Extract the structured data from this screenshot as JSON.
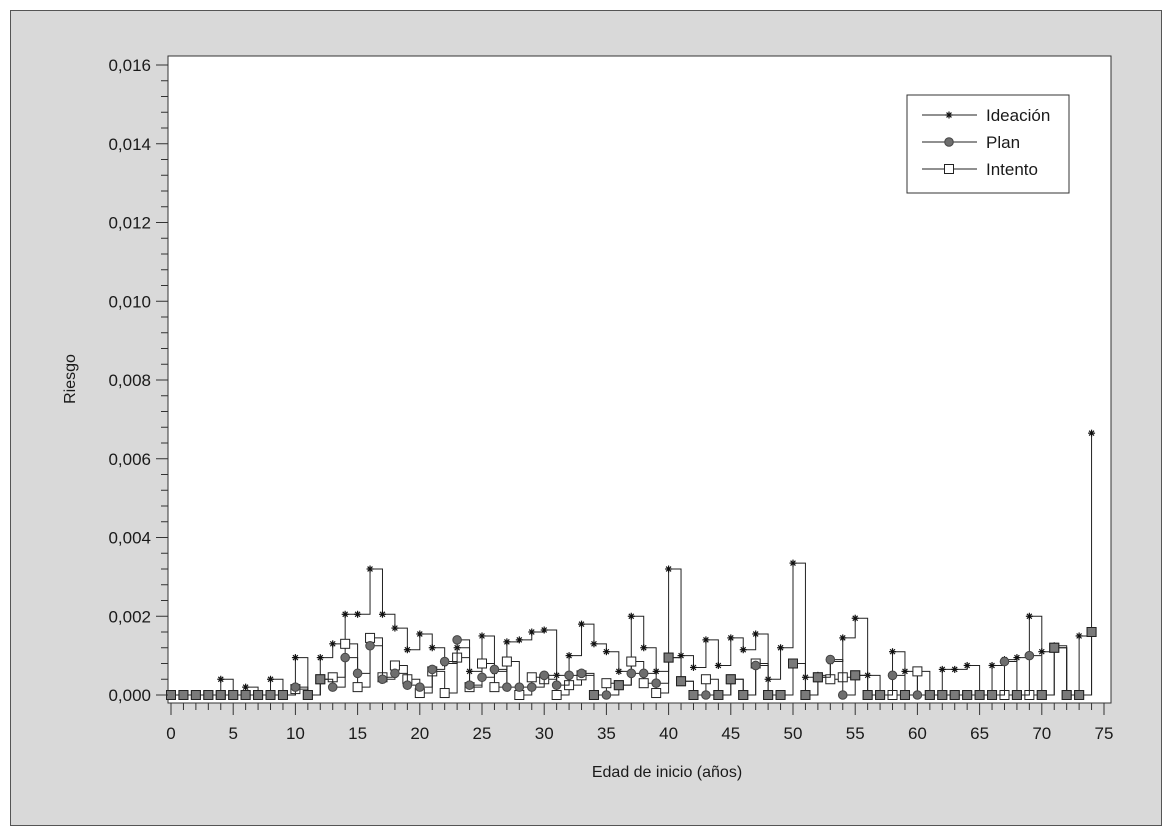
{
  "chart_data": {
    "type": "line",
    "step": "post",
    "xlabel": "Edad de inicio (años)",
    "ylabel": "Riesgo",
    "xlim": [
      0,
      75
    ],
    "ylim": [
      0,
      0.016
    ],
    "x_ticks": [
      0,
      5,
      10,
      15,
      20,
      25,
      30,
      35,
      40,
      45,
      50,
      55,
      60,
      65,
      70,
      75
    ],
    "x_tick_labels": [
      "0",
      "5",
      "10",
      "15",
      "20",
      "25",
      "30",
      "35",
      "40",
      "45",
      "50",
      "55",
      "60",
      "65",
      "70",
      "75"
    ],
    "y_ticks": [
      0,
      0.002,
      0.004,
      0.006,
      0.008,
      0.01,
      0.012,
      0.014,
      0.016
    ],
    "y_tick_labels": [
      "0,000",
      "0,002",
      "0,004",
      "0,006",
      "0,008",
      "0,010",
      "0,012",
      "0,014",
      "0,016"
    ],
    "x_minor_step": 1,
    "y_minor_step": 0.0004,
    "grid": false,
    "legend": {
      "position": "top-right"
    },
    "x": [
      0,
      1,
      2,
      3,
      4,
      5,
      6,
      7,
      8,
      9,
      10,
      11,
      12,
      13,
      14,
      15,
      16,
      17,
      18,
      19,
      20,
      21,
      22,
      23,
      24,
      25,
      26,
      27,
      28,
      29,
      30,
      31,
      32,
      33,
      34,
      35,
      36,
      37,
      38,
      39,
      40,
      41,
      42,
      43,
      44,
      45,
      46,
      47,
      48,
      49,
      50,
      51,
      52,
      53,
      54,
      55,
      56,
      57,
      58,
      59,
      60,
      61,
      62,
      63,
      64,
      65,
      66,
      67,
      68,
      69,
      70,
      71,
      72,
      73,
      74
    ],
    "series": [
      {
        "name": "Ideación",
        "marker": "asterisk",
        "values": [
          0,
          0,
          0,
          0,
          0.0004,
          0,
          0.0002,
          0,
          0.0004,
          0,
          0.00095,
          0,
          0.00095,
          0.0013,
          0.00205,
          0.00205,
          0.0032,
          0.00205,
          0.0017,
          0.00115,
          0.00155,
          0.0012,
          0.0008,
          0.0012,
          0.0006,
          0.0015,
          0.0006,
          0.00135,
          0.0014,
          0.0016,
          0.00165,
          0.0005,
          0.001,
          0.0018,
          0.0013,
          0.0011,
          0.0006,
          0.002,
          0.0012,
          0.0006,
          0.0032,
          0.001,
          0.0007,
          0.0014,
          0.00075,
          0.00145,
          0.00115,
          0.00155,
          0.0004,
          0.0012,
          0.00335,
          0.00045,
          0.0005,
          0.00085,
          0.00145,
          0.00195,
          0.0005,
          0,
          0.0011,
          0.0006,
          0,
          0,
          0.00065,
          0.00065,
          0.00075,
          0,
          0.00075,
          0.0009,
          0.00095,
          0.002,
          0.0011,
          0.00125,
          0,
          0.0015,
          0.00665
        ]
      },
      {
        "name": "Plan",
        "marker": "circle",
        "values": [
          0,
          0,
          0,
          0,
          0,
          0,
          0,
          0,
          0,
          0,
          0.0002,
          0,
          0.0004,
          0.0002,
          0.00095,
          0.00055,
          0.00125,
          0.0004,
          0.00055,
          0.00025,
          0.0002,
          0.00065,
          0.00085,
          0.0014,
          0.00025,
          0.00045,
          0.00065,
          0.0002,
          0.0002,
          0.0002,
          0.0005,
          0.00025,
          0.0005,
          0.00055,
          0,
          0,
          0.00025,
          0.00055,
          0.00055,
          0.0003,
          0.00095,
          0.00035,
          0,
          0,
          0,
          0.0004,
          0,
          0.00075,
          0,
          0,
          0.0008,
          0,
          0.00045,
          0.0009,
          0,
          0.0005,
          0,
          0,
          0.0005,
          0,
          0,
          0,
          0,
          0,
          0,
          0,
          0,
          0.00085,
          0,
          0.001,
          0,
          0.0012,
          0,
          0,
          0.0016
        ]
      },
      {
        "name": "Intento",
        "marker": "square",
        "values": [
          0,
          0,
          0,
          0,
          0,
          0,
          0,
          0,
          0,
          0,
          0.00015,
          0,
          0.0004,
          0.00045,
          0.0013,
          0.0002,
          0.00145,
          0.00045,
          0.00075,
          0.0004,
          5e-05,
          0.0006,
          5e-05,
          0.00095,
          0.0002,
          0.0008,
          0.0002,
          0.00085,
          0,
          0.00045,
          0.0004,
          0,
          0.00025,
          0.0005,
          0,
          0.0003,
          0.00025,
          0.00085,
          0.0003,
          5e-05,
          0.00095,
          0.00035,
          0,
          0.0004,
          0,
          0.0004,
          0,
          0.0008,
          0,
          0,
          0.0008,
          0,
          0.00045,
          0.0004,
          0.00045,
          0.0005,
          0,
          0,
          0,
          0,
          0.0006,
          0,
          0,
          0,
          0,
          0,
          0,
          0,
          0,
          0,
          0,
          0.0012,
          0,
          0,
          0.0016
        ]
      }
    ]
  }
}
